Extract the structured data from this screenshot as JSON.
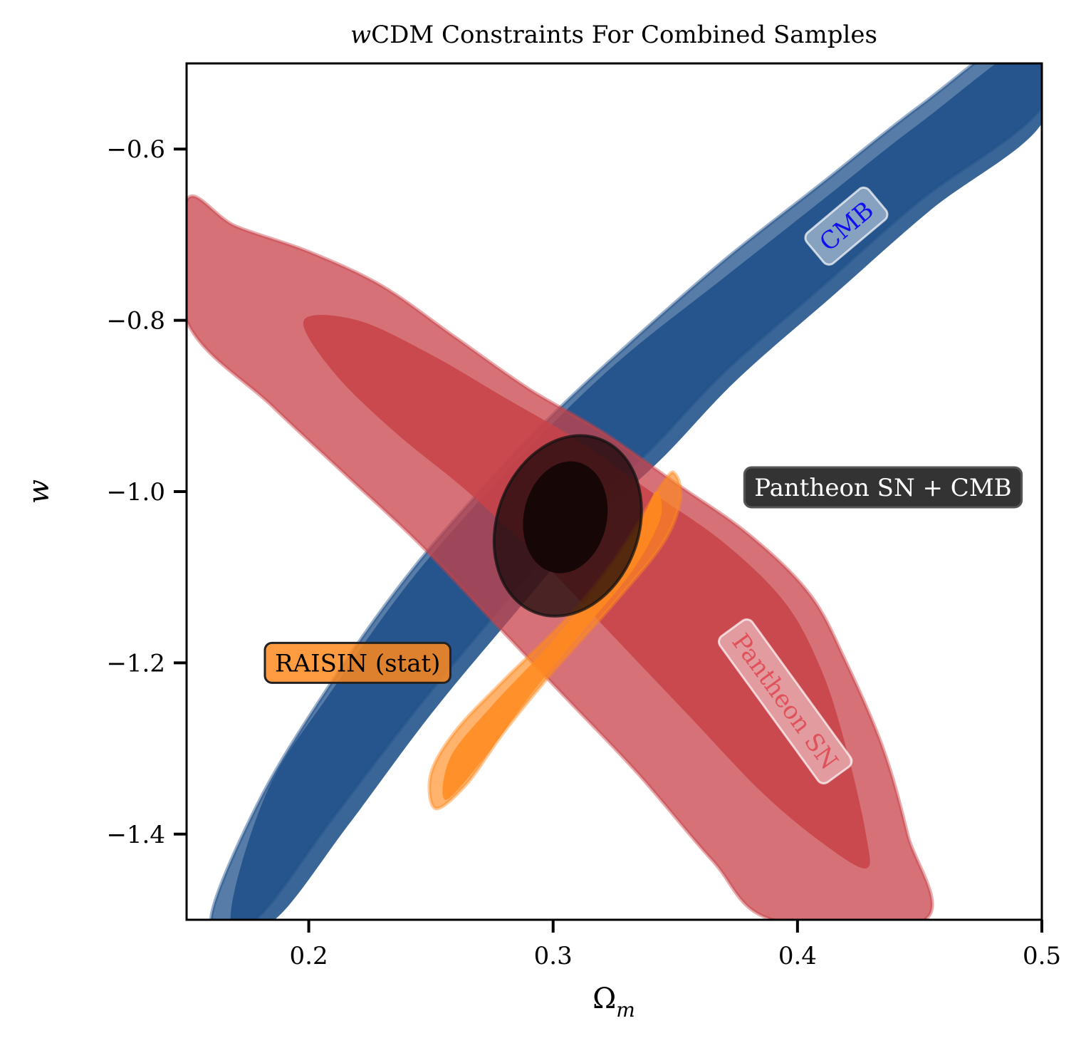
{
  "chart_data": {
    "type": "contour",
    "title": "wCDM Constraints For Combined Samples",
    "title_italic_part": "w",
    "title_rest": "CDM Constraints For Combined Samples",
    "xlabel": "Ω",
    "xlabel_sub": "m",
    "ylabel": "w",
    "xlim": [
      0.15,
      0.5
    ],
    "ylim": [
      -1.5,
      -0.5
    ],
    "xticks": [
      0.2,
      0.3,
      0.4,
      0.5
    ],
    "xtick_labels": [
      "0.2",
      "0.3",
      "0.4",
      "0.5"
    ],
    "yticks": [
      -0.6,
      -0.8,
      -1.0,
      -1.2,
      -1.4
    ],
    "ytick_labels": [
      "−0.6",
      "−0.8",
      "−1.0",
      "−1.2",
      "−1.4"
    ],
    "grid": false,
    "series": [
      {
        "name": "CMB",
        "color": "#1f5089",
        "contours": {
          "outer": [
            [
              0.178,
              -1.5
            ],
            [
              0.21,
              -1.38
            ],
            [
              0.245,
              -1.25
            ],
            [
              0.28,
              -1.13
            ],
            [
              0.31,
              -1.03
            ],
            [
              0.34,
              -0.95
            ],
            [
              0.37,
              -0.86
            ],
            [
              0.41,
              -0.76
            ],
            [
              0.45,
              -0.66
            ],
            [
              0.5,
              -0.55
            ],
            [
              0.5,
              -0.45
            ],
            [
              0.45,
              -0.55
            ],
            [
              0.41,
              -0.64
            ],
            [
              0.37,
              -0.73
            ],
            [
              0.33,
              -0.83
            ],
            [
              0.3,
              -0.91
            ],
            [
              0.27,
              -1.0
            ],
            [
              0.24,
              -1.1
            ],
            [
              0.21,
              -1.22
            ],
            [
              0.18,
              -1.36
            ],
            [
              0.16,
              -1.5
            ]
          ],
          "inner": [
            [
              0.186,
              -1.5
            ],
            [
              0.216,
              -1.39
            ],
            [
              0.25,
              -1.26
            ],
            [
              0.285,
              -1.14
            ],
            [
              0.315,
              -1.04
            ],
            [
              0.345,
              -0.96
            ],
            [
              0.375,
              -0.87
            ],
            [
              0.415,
              -0.77
            ],
            [
              0.455,
              -0.67
            ],
            [
              0.5,
              -0.57
            ],
            [
              0.5,
              -0.47
            ],
            [
              0.45,
              -0.57
            ],
            [
              0.41,
              -0.66
            ],
            [
              0.37,
              -0.75
            ],
            [
              0.33,
              -0.84
            ],
            [
              0.3,
              -0.92
            ],
            [
              0.27,
              -1.01
            ],
            [
              0.24,
              -1.11
            ],
            [
              0.21,
              -1.23
            ],
            [
              0.183,
              -1.35
            ],
            [
              0.168,
              -1.5
            ]
          ]
        }
      },
      {
        "name": "Pantheon SN",
        "color": "#c8434a",
        "contours": {
          "outer": [
            [
              0.15,
              -0.66
            ],
            [
              0.17,
              -0.69
            ],
            [
              0.2,
              -0.72
            ],
            [
              0.23,
              -0.76
            ],
            [
              0.26,
              -0.82
            ],
            [
              0.29,
              -0.88
            ],
            [
              0.32,
              -0.93
            ],
            [
              0.35,
              -0.99
            ],
            [
              0.38,
              -1.05
            ],
            [
              0.405,
              -1.12
            ],
            [
              0.42,
              -1.2
            ],
            [
              0.435,
              -1.3
            ],
            [
              0.445,
              -1.4
            ],
            [
              0.452,
              -1.5
            ],
            [
              0.39,
              -1.5
            ],
            [
              0.365,
              -1.43
            ],
            [
              0.335,
              -1.33
            ],
            [
              0.305,
              -1.24
            ],
            [
              0.275,
              -1.15
            ],
            [
              0.245,
              -1.06
            ],
            [
              0.215,
              -0.98
            ],
            [
              0.185,
              -0.9
            ],
            [
              0.15,
              -0.8
            ]
          ],
          "inner": [
            [
              0.198,
              -0.8
            ],
            [
              0.22,
              -0.8
            ],
            [
              0.25,
              -0.84
            ],
            [
              0.28,
              -0.89
            ],
            [
              0.31,
              -0.94
            ],
            [
              0.34,
              -1.0
            ],
            [
              0.37,
              -1.06
            ],
            [
              0.395,
              -1.13
            ],
            [
              0.41,
              -1.21
            ],
            [
              0.42,
              -1.3
            ],
            [
              0.428,
              -1.4
            ],
            [
              0.428,
              -1.44
            ],
            [
              0.41,
              -1.41
            ],
            [
              0.385,
              -1.35
            ],
            [
              0.355,
              -1.26
            ],
            [
              0.325,
              -1.17
            ],
            [
              0.295,
              -1.08
            ],
            [
              0.265,
              -1.0
            ],
            [
              0.235,
              -0.93
            ],
            [
              0.21,
              -0.86
            ]
          ]
        }
      },
      {
        "name": "RAISIN (stat)",
        "color": "#ff8a1e",
        "contours": {
          "outer": [
            [
              0.252,
              -1.37
            ],
            [
              0.25,
              -1.33
            ],
            [
              0.26,
              -1.28
            ],
            [
              0.28,
              -1.22
            ],
            [
              0.305,
              -1.15
            ],
            [
              0.325,
              -1.08
            ],
            [
              0.345,
              -0.99
            ],
            [
              0.35,
              -0.98
            ],
            [
              0.352,
              -1.01
            ],
            [
              0.345,
              -1.06
            ],
            [
              0.325,
              -1.13
            ],
            [
              0.3,
              -1.21
            ],
            [
              0.28,
              -1.28
            ],
            [
              0.265,
              -1.34
            ]
          ],
          "inner": [
            [
              0.256,
              -1.36
            ],
            [
              0.258,
              -1.31
            ],
            [
              0.275,
              -1.25
            ],
            [
              0.298,
              -1.18
            ],
            [
              0.318,
              -1.11
            ],
            [
              0.335,
              -1.04
            ],
            [
              0.342,
              -1.0
            ],
            [
              0.344,
              -1.03
            ],
            [
              0.333,
              -1.09
            ],
            [
              0.313,
              -1.16
            ],
            [
              0.29,
              -1.24
            ],
            [
              0.272,
              -1.31
            ]
          ]
        }
      },
      {
        "name": "Pantheon SN + CMB",
        "color": "#140505",
        "contours": {
          "outer_ellipse": {
            "cx": 0.306,
            "cy": -1.04,
            "rx": 0.029,
            "ry": 0.108,
            "tilt_deg": 20
          },
          "inner_ellipse": {
            "cx": 0.305,
            "cy": -1.03,
            "rx": 0.017,
            "ry": 0.066,
            "tilt_deg": 12
          }
        }
      }
    ],
    "annotations": [
      {
        "text": "CMB",
        "x": 0.42,
        "y": -0.69,
        "rotation": -40,
        "text_color": "#1010ee"
      },
      {
        "text": "Pantheon SN",
        "x": 0.395,
        "y": -1.245,
        "rotation": 54,
        "text_color": "#e0525a"
      },
      {
        "text": "Pantheon SN + CMB",
        "x": 0.435,
        "y": -0.995,
        "rotation": 0,
        "text_color": "#ffffff"
      },
      {
        "text": "RAISIN (stat)",
        "x": 0.22,
        "y": -1.2,
        "rotation": 0,
        "text_color": "#000000"
      }
    ]
  }
}
